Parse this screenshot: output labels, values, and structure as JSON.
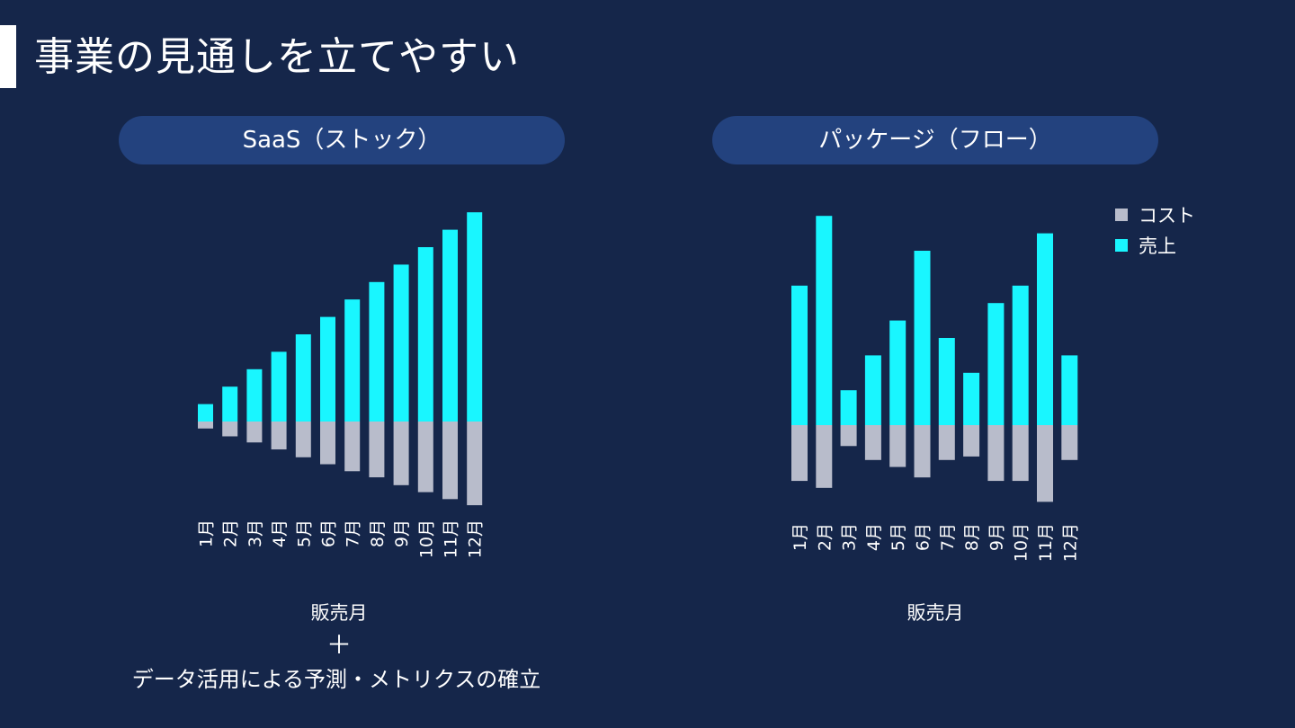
{
  "page": {
    "title": "事業の見通しを立てやすい",
    "plus_sign": "＋",
    "footnote": "データ活用による予測・メトリクスの確立"
  },
  "colors": {
    "background": "#15264a",
    "pill": "#23427e",
    "sales": "#19f6ff",
    "cost": "#b8bccb"
  },
  "legend": {
    "cost_label": "コスト",
    "sales_label": "売上"
  },
  "chart_data": [
    {
      "type": "bar",
      "title": "SaaS（ストック）",
      "xlabel": "販売月",
      "ylabel": "",
      "categories": [
        "1月",
        "2月",
        "3月",
        "4月",
        "5月",
        "6月",
        "7月",
        "8月",
        "9月",
        "10月",
        "11月",
        "12月"
      ],
      "series": [
        {
          "name": "売上",
          "values": [
            1,
            2,
            3,
            4,
            5,
            6,
            7,
            8,
            9,
            10,
            11,
            12
          ]
        },
        {
          "name": "コスト",
          "values": [
            -0.4,
            -0.85,
            -1.2,
            -1.6,
            -2.05,
            -2.45,
            -2.85,
            -3.2,
            -3.65,
            -4.05,
            -4.45,
            -4.8
          ]
        }
      ],
      "ylim": [
        -5,
        12
      ],
      "stacked": true,
      "grid": false
    },
    {
      "type": "bar",
      "title": "パッケージ（フロー）",
      "xlabel": "販売月",
      "ylabel": "",
      "categories": [
        "1月",
        "2月",
        "3月",
        "4月",
        "5月",
        "6月",
        "7月",
        "8月",
        "9月",
        "10月",
        "11月",
        "12月"
      ],
      "series": [
        {
          "name": "売上",
          "values": [
            8,
            12,
            2,
            4,
            6,
            10,
            5,
            3,
            7,
            8,
            11,
            4
          ]
        },
        {
          "name": "コスト",
          "values": [
            -3.2,
            -3.6,
            -1.2,
            -2,
            -2.4,
            -3,
            -2,
            -1.8,
            -3.2,
            -3.2,
            -4.4,
            -2
          ]
        }
      ],
      "ylim": [
        -5,
        12
      ],
      "stacked": true,
      "grid": false,
      "legend": "top-right"
    }
  ]
}
